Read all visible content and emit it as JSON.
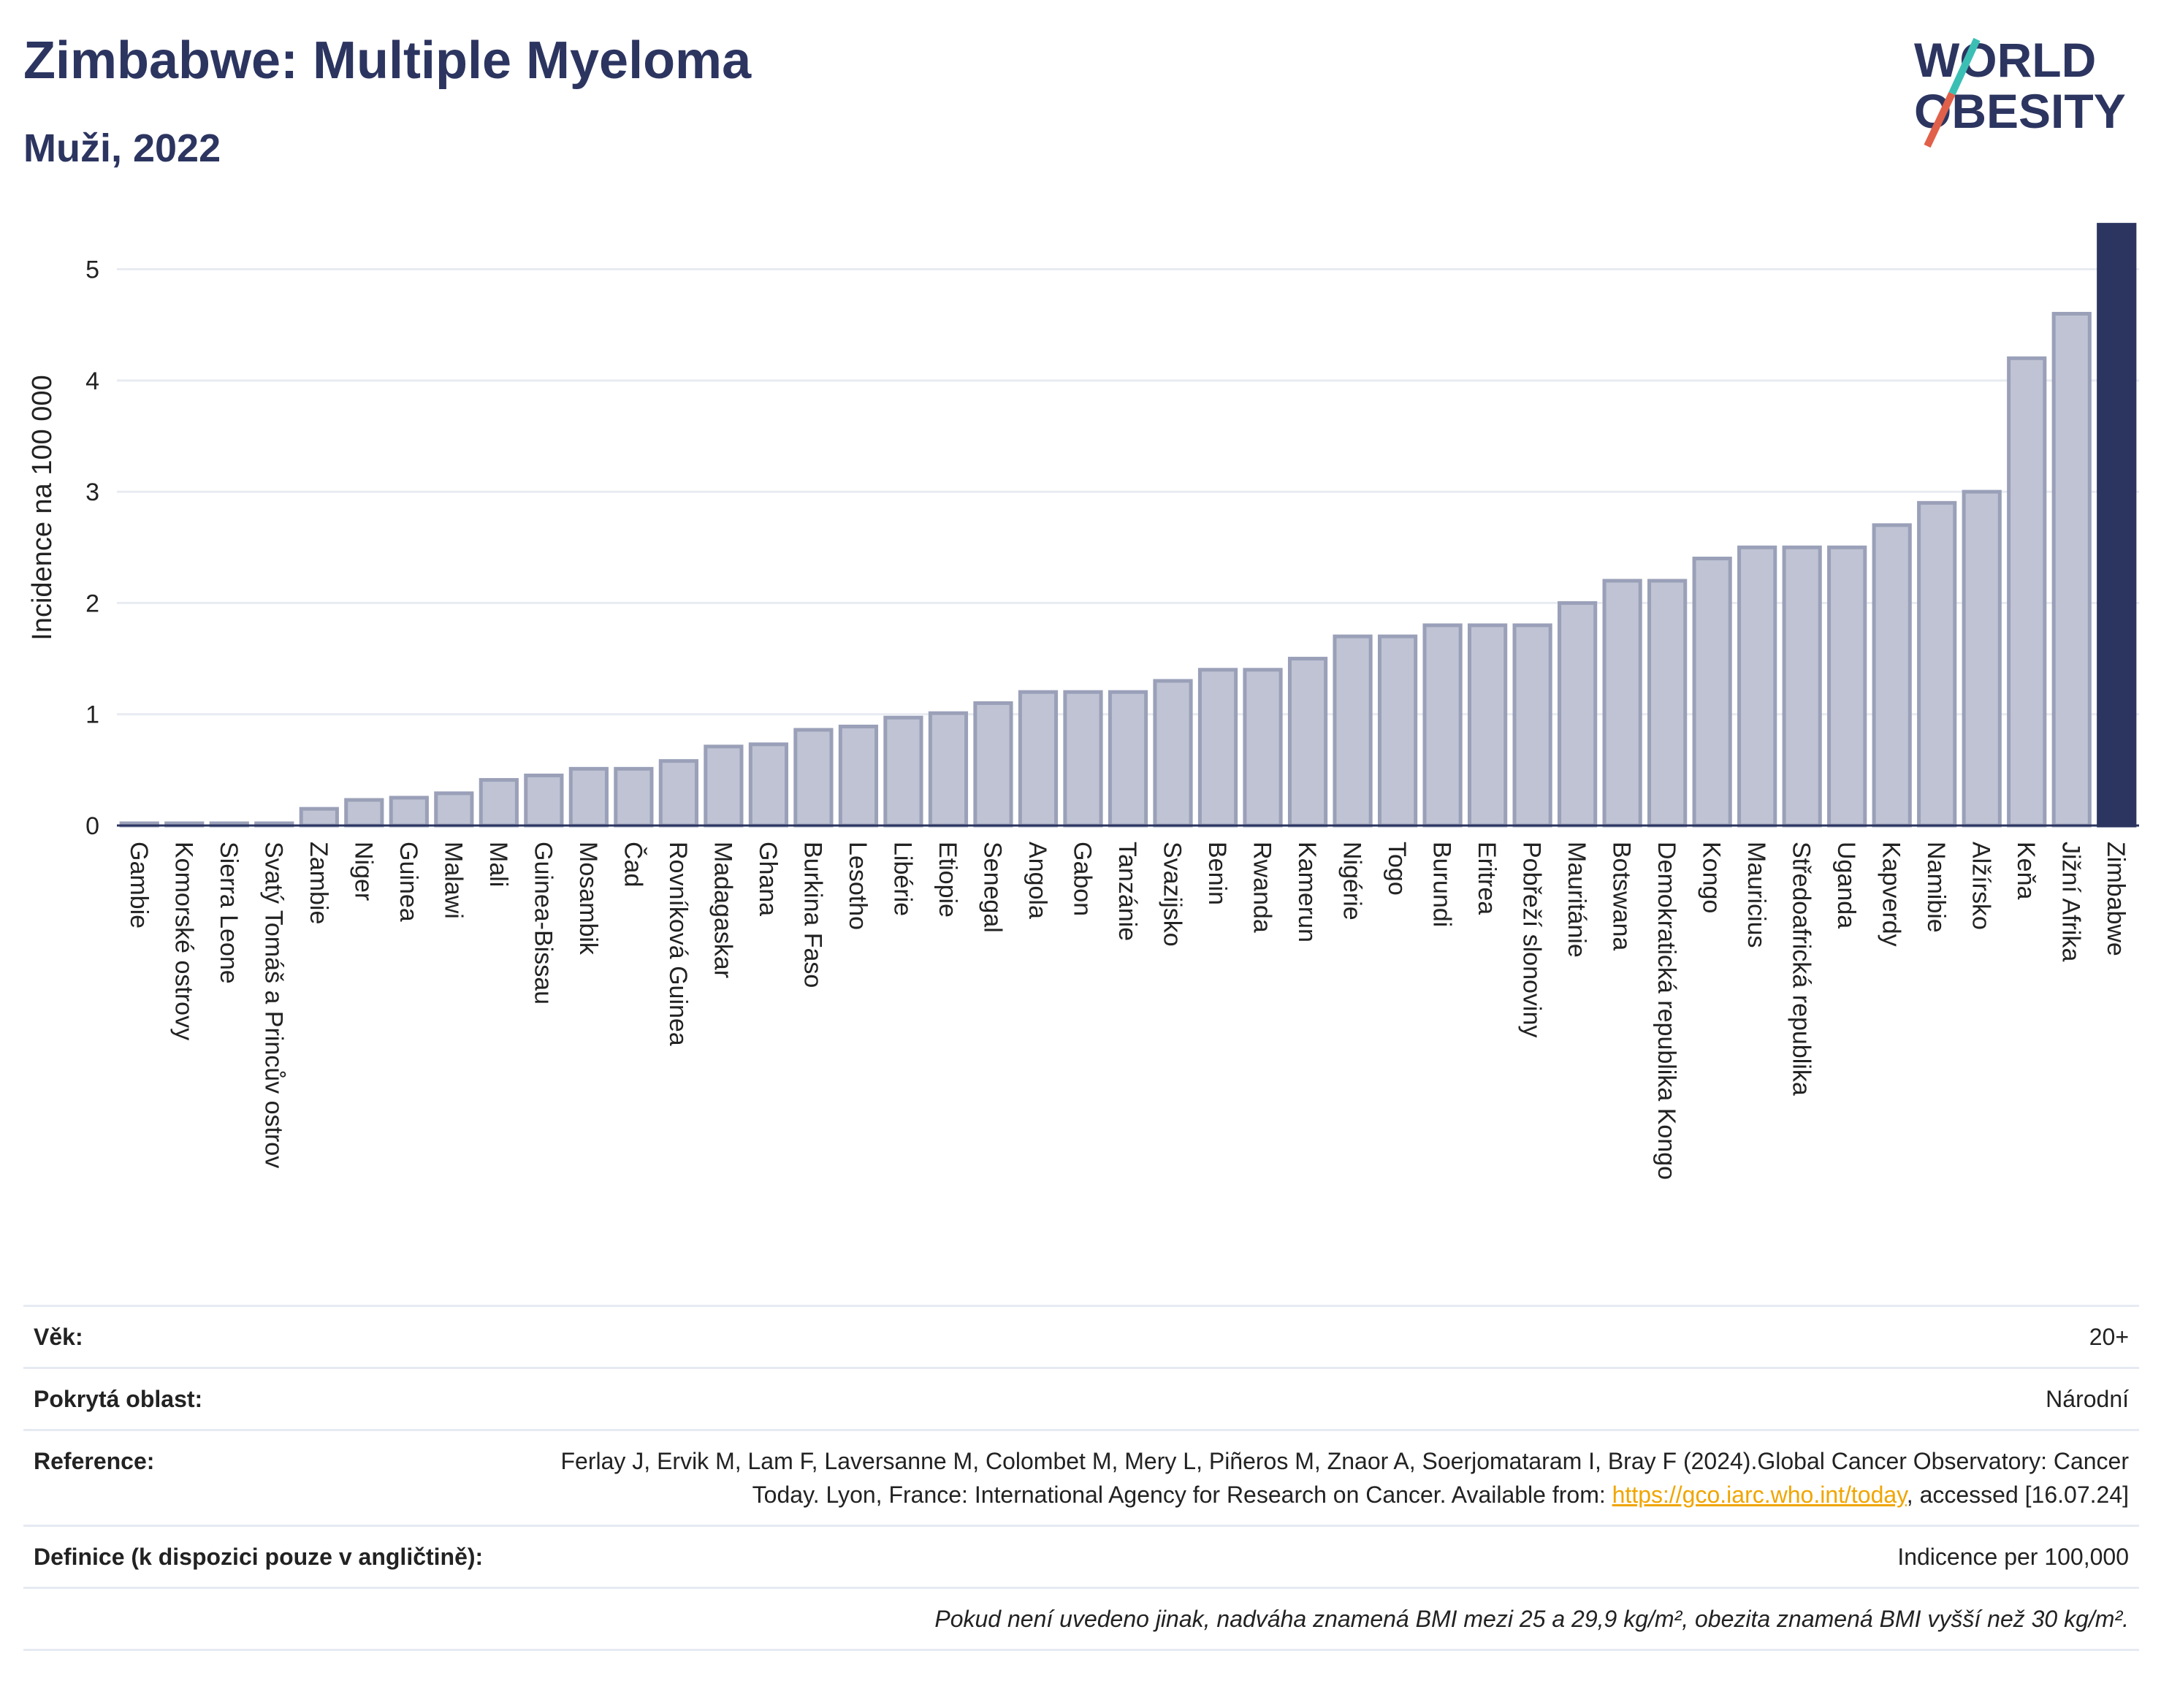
{
  "header": {
    "title": "Zimbabwe: Multiple Myeloma",
    "subtitle": "Muži, 2022"
  },
  "logo": {
    "line1": "WORLD",
    "line2": "OBESITY"
  },
  "colors": {
    "bar": "#bfc3d3",
    "bar_stroke": "#9aa0b8",
    "highlight": "#2c3560",
    "grid": "#e8ebf1"
  },
  "chart_data": {
    "type": "bar",
    "ylabel": "Incidence na 100 000",
    "ylim": [
      0,
      5.45
    ],
    "yticks": [
      0,
      1,
      2,
      3,
      4,
      5
    ],
    "grid": true,
    "highlight": "Zimbabwe",
    "categories": [
      "Gambie",
      "Komorské ostrovy",
      "Sierra Leone",
      "Svatý Tomáš a Princův ostrov",
      "Zambie",
      "Niger",
      "Guinea",
      "Malawi",
      "Mali",
      "Guinea-Bissau",
      "Mosambik",
      "Čad",
      "Rovníková Guinea",
      "Madagaskar",
      "Ghana",
      "Burkina Faso",
      "Lesotho",
      "Libérie",
      "Etiopie",
      "Senegal",
      "Angola",
      "Gabon",
      "Tanzánie",
      "Svazijsko",
      "Benin",
      "Rwanda",
      "Kamerun",
      "Nigérie",
      "Togo",
      "Burundi",
      "Eritrea",
      "Pobřeží slonoviny",
      "Mauritánie",
      "Botswana",
      "Demokratická republika Kongo",
      "Kongo",
      "Mauricius",
      "Středoafrická republika",
      "Uganda",
      "Kapverdy",
      "Namibie",
      "Alžírsko",
      "Keňa",
      "Jižní Afrika",
      "Zimbabwe"
    ],
    "values": [
      0.02,
      0.02,
      0.02,
      0.02,
      0.15,
      0.23,
      0.25,
      0.29,
      0.41,
      0.45,
      0.51,
      0.51,
      0.58,
      0.71,
      0.73,
      0.86,
      0.89,
      0.97,
      1.01,
      1.1,
      1.2,
      1.2,
      1.2,
      1.3,
      1.4,
      1.4,
      1.5,
      1.7,
      1.7,
      1.8,
      1.8,
      1.8,
      2.0,
      2.2,
      2.2,
      2.4,
      2.5,
      2.5,
      2.5,
      2.7,
      2.9,
      3.0,
      4.2,
      4.6,
      5.4
    ]
  },
  "info": {
    "age_label": "Věk:",
    "age_value": "20+",
    "area_label": "Pokrytá oblast:",
    "area_value": "Národní",
    "ref_label": "Reference:",
    "ref_text": "Ferlay J, Ervik M, Lam F, Laversanne M, Colombet M, Mery L, Piñeros M, Znaor A, Soerjomataram I, Bray F (2024).Global Cancer Observatory: Cancer Today. Lyon, France: International Agency for Research on Cancer. Available from:",
    "ref_link": "https://gco.iarc.who.int/today",
    "ref_tail": ", accessed [16.07.24]",
    "def_label": "Definice (k dispozici pouze v angličtině):",
    "def_value": "Indicence per 100,000",
    "note": "Pokud není uvedeno jinak, nadváha znamená BMI mezi 25 a 29,9 kg/m², obezita znamená BMI vyšší než 30 kg/m²."
  }
}
